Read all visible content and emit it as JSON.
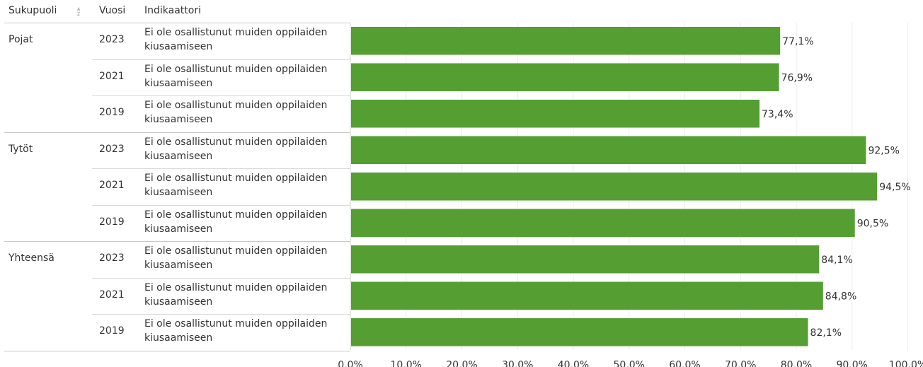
{
  "headers": {
    "gender": "Sukupuoli",
    "year": "Vuosi",
    "indicator": "Indikaattori"
  },
  "chart_data": {
    "type": "bar",
    "orientation": "horizontal",
    "title": "",
    "xlabel": "",
    "ylabel": "",
    "xlim": [
      0,
      100
    ],
    "grid": true,
    "bar_color": "#559e32",
    "x_ticks": [
      "0,0%",
      "10,0%",
      "20,0%",
      "30,0%",
      "40,0%",
      "50,0%",
      "60,0%",
      "70,0%",
      "80,0%",
      "90,0%",
      "100,0%"
    ],
    "groups": [
      {
        "name": "Pojat",
        "rows": [
          {
            "year": "2023",
            "indicator": "Ei ole osallistunut muiden oppilaiden kiusaamiseen",
            "value": 77.1,
            "label": "77,1%"
          },
          {
            "year": "2021",
            "indicator": "Ei ole osallistunut muiden oppilaiden kiusaamiseen",
            "value": 76.9,
            "label": "76,9%"
          },
          {
            "year": "2019",
            "indicator": "Ei ole osallistunut muiden oppilaiden kiusaamiseen",
            "value": 73.4,
            "label": "73,4%"
          }
        ]
      },
      {
        "name": "Tytöt",
        "rows": [
          {
            "year": "2023",
            "indicator": "Ei ole osallistunut muiden oppilaiden kiusaamiseen",
            "value": 92.5,
            "label": "92,5%"
          },
          {
            "year": "2021",
            "indicator": "Ei ole osallistunut muiden oppilaiden kiusaamiseen",
            "value": 94.5,
            "label": "94,5%"
          },
          {
            "year": "2019",
            "indicator": "Ei ole osallistunut muiden oppilaiden kiusaamiseen",
            "value": 90.5,
            "label": "90,5%"
          }
        ]
      },
      {
        "name": "Yhteensä",
        "rows": [
          {
            "year": "2023",
            "indicator": "Ei ole osallistunut muiden oppilaiden kiusaamiseen",
            "value": 84.1,
            "label": "84,1%"
          },
          {
            "year": "2021",
            "indicator": "Ei ole osallistunut muiden oppilaiden kiusaamiseen",
            "value": 84.8,
            "label": "84,8%"
          },
          {
            "year": "2019",
            "indicator": "Ei ole osallistunut muiden oppilaiden kiusaamiseen",
            "value": 82.1,
            "label": "82,1%"
          }
        ]
      }
    ]
  }
}
